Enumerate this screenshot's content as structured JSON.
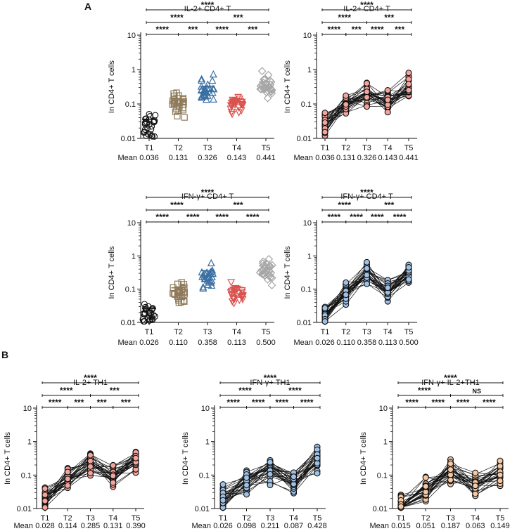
{
  "panel_labels": {
    "a": "A",
    "b": "B"
  },
  "common": {
    "ylabel": "In CD4+ T cells",
    "mean_label": "Mean",
    "categories": [
      "T1",
      "T2",
      "T3",
      "T4",
      "T5"
    ],
    "yticks": [
      "0.01",
      "0.1",
      "1",
      "10"
    ],
    "sig": {
      "s4": "****",
      "s3": "***",
      "ns": "NS"
    }
  },
  "colors": {
    "T1": "#111111",
    "T2": "#8e7a5a",
    "T3": "#3a6fa3",
    "T4": "#d9534f",
    "T5": "#a6a6a6",
    "salmon": "#f4a49c",
    "lightblue": "#9fc1e6",
    "peach": "#f6c9a4"
  },
  "chart_data": [
    {
      "id": "a1",
      "type": "scatter",
      "title": "IL-2+ CD4+ T",
      "ylabel": "In CD4+ T cells",
      "scale": "log",
      "ylim": [
        0.01,
        10
      ],
      "categories": [
        "T1",
        "T2",
        "T3",
        "T4",
        "T5"
      ],
      "means": [
        "0.036",
        "0.131",
        "0.326",
        "0.143",
        "0.441"
      ],
      "mean_values": [
        0.036,
        0.131,
        0.326,
        0.143,
        0.441
      ],
      "style": "dot",
      "markers": [
        "circle",
        "square",
        "triangle",
        "invtriangle",
        "diamond"
      ],
      "brackets": [
        {
          "from": "T1",
          "to": "T5",
          "label": "****"
        },
        {
          "from": "T1",
          "to": "T3",
          "label": "****"
        },
        {
          "from": "T3",
          "to": "T5",
          "label": "***"
        },
        {
          "from": "T1",
          "to": "T2",
          "label": "****"
        },
        {
          "from": "T2",
          "to": "T3",
          "label": "***"
        },
        {
          "from": "T3",
          "to": "T4",
          "label": "****"
        },
        {
          "from": "T4",
          "to": "T5",
          "label": "***"
        }
      ]
    },
    {
      "id": "a2",
      "type": "line",
      "title": "IL-2+ CD4+ T",
      "ylabel": "In CD4+ T cells",
      "scale": "log",
      "ylim": [
        0.01,
        10
      ],
      "categories": [
        "T1",
        "T2",
        "T3",
        "T4",
        "T5"
      ],
      "means": [
        "0.036",
        "0.131",
        "0.326",
        "0.143",
        "0.441"
      ],
      "mean_values": [
        0.036,
        0.131,
        0.326,
        0.143,
        0.441
      ],
      "style": "paired",
      "color": "#f4a49c",
      "brackets": [
        {
          "from": "T1",
          "to": "T5",
          "label": "****"
        },
        {
          "from": "T1",
          "to": "T3",
          "label": "****"
        },
        {
          "from": "T3",
          "to": "T5",
          "label": "***"
        },
        {
          "from": "T1",
          "to": "T2",
          "label": "****"
        },
        {
          "from": "T2",
          "to": "T3",
          "label": "***"
        },
        {
          "from": "T3",
          "to": "T4",
          "label": "****"
        },
        {
          "from": "T4",
          "to": "T5",
          "label": "***"
        }
      ]
    },
    {
      "id": "a3",
      "type": "scatter",
      "title": "IFN-γ+ CD4+ T",
      "ylabel": "In CD4+ T cells",
      "scale": "log",
      "ylim": [
        0.01,
        10
      ],
      "categories": [
        "T1",
        "T2",
        "T3",
        "T4",
        "T5"
      ],
      "means": [
        "0.026",
        "0.110",
        "0.358",
        "0.113",
        "0.500"
      ],
      "mean_values": [
        0.026,
        0.11,
        0.358,
        0.113,
        0.5
      ],
      "style": "dot",
      "markers": [
        "circle",
        "square",
        "triangle",
        "invtriangle",
        "diamond"
      ],
      "brackets": [
        {
          "from": "T1",
          "to": "T5",
          "label": "****"
        },
        {
          "from": "T1",
          "to": "T3",
          "label": "****"
        },
        {
          "from": "T3",
          "to": "T5",
          "label": "***"
        },
        {
          "from": "T1",
          "to": "T2",
          "label": "****"
        },
        {
          "from": "T2",
          "to": "T3",
          "label": "****"
        },
        {
          "from": "T3",
          "to": "T4",
          "label": "****"
        },
        {
          "from": "T4",
          "to": "T5",
          "label": "****"
        }
      ]
    },
    {
      "id": "a4",
      "type": "line",
      "title": "IFN-γ+ CD4+ T",
      "ylabel": "In CD4+ T cells",
      "scale": "log",
      "ylim": [
        0.01,
        10
      ],
      "categories": [
        "T1",
        "T2",
        "T3",
        "T4",
        "T5"
      ],
      "means": [
        "0.026",
        "0.110",
        "0.358",
        "0.113",
        "0.500"
      ],
      "mean_values": [
        0.026,
        0.11,
        0.358,
        0.113,
        0.5
      ],
      "style": "paired",
      "color": "#9fc1e6",
      "brackets": [
        {
          "from": "T1",
          "to": "T5",
          "label": "****"
        },
        {
          "from": "T1",
          "to": "T3",
          "label": "****"
        },
        {
          "from": "T3",
          "to": "T5",
          "label": "***"
        },
        {
          "from": "T1",
          "to": "T2",
          "label": "****"
        },
        {
          "from": "T2",
          "to": "T3",
          "label": "****"
        },
        {
          "from": "T3",
          "to": "T4",
          "label": "****"
        },
        {
          "from": "T4",
          "to": "T5",
          "label": "****"
        }
      ]
    },
    {
      "id": "b1",
      "type": "line",
      "title": "IL-2+ TH1",
      "ylabel": "In CD4+ T cells",
      "scale": "log",
      "ylim": [
        0.01,
        10
      ],
      "categories": [
        "T1",
        "T2",
        "T3",
        "T4",
        "T5"
      ],
      "means": [
        "0.028",
        "0.114",
        "0.285",
        "0.131",
        "0.390"
      ],
      "mean_values": [
        0.028,
        0.114,
        0.285,
        0.131,
        0.39
      ],
      "style": "paired",
      "color": "#f4a49c",
      "brackets": [
        {
          "from": "T1",
          "to": "T5",
          "label": "****"
        },
        {
          "from": "T1",
          "to": "T3",
          "label": "****"
        },
        {
          "from": "T3",
          "to": "T5",
          "label": "***"
        },
        {
          "from": "T1",
          "to": "T2",
          "label": "****"
        },
        {
          "from": "T2",
          "to": "T3",
          "label": "***"
        },
        {
          "from": "T3",
          "to": "T4",
          "label": "***"
        },
        {
          "from": "T4",
          "to": "T5",
          "label": "***"
        }
      ]
    },
    {
      "id": "b2",
      "type": "line",
      "title": "IFN-γ+ TH1",
      "ylabel": "In CD4+ T cells",
      "scale": "log",
      "ylim": [
        0.01,
        10
      ],
      "categories": [
        "T1",
        "T2",
        "T3",
        "T4",
        "T5"
      ],
      "means": [
        "0.026",
        "0.098",
        "0.211",
        "0.087",
        "0.428"
      ],
      "mean_values": [
        0.026,
        0.098,
        0.211,
        0.087,
        0.428
      ],
      "style": "paired",
      "color": "#9fc1e6",
      "brackets": [
        {
          "from": "T1",
          "to": "T5",
          "label": "****"
        },
        {
          "from": "T1",
          "to": "T3",
          "label": "****"
        },
        {
          "from": "T3",
          "to": "T5",
          "label": "****"
        },
        {
          "from": "T1",
          "to": "T2",
          "label": "****"
        },
        {
          "from": "T2",
          "to": "T3",
          "label": "****"
        },
        {
          "from": "T3",
          "to": "T4",
          "label": "****"
        },
        {
          "from": "T4",
          "to": "T5",
          "label": "****"
        }
      ]
    },
    {
      "id": "b3",
      "type": "line",
      "title": "IFN-γ+ IL-2+TH1",
      "ylabel": "In CD4+ T cells",
      "scale": "log",
      "ylim": [
        0.01,
        10
      ],
      "categories": [
        "T1",
        "T2",
        "T3",
        "T4",
        "T5"
      ],
      "means": [
        "0.015",
        "0.051",
        "0.187",
        "0.063",
        "0.149"
      ],
      "mean_values": [
        0.015,
        0.051,
        0.187,
        0.063,
        0.149
      ],
      "style": "paired",
      "color": "#f6c9a4",
      "brackets": [
        {
          "from": "T1",
          "to": "T5",
          "label": "****"
        },
        {
          "from": "T1",
          "to": "T3",
          "label": "****"
        },
        {
          "from": "T3",
          "to": "T5",
          "label": "NS"
        },
        {
          "from": "T1",
          "to": "T2",
          "label": "****"
        },
        {
          "from": "T2",
          "to": "T3",
          "label": "****"
        },
        {
          "from": "T3",
          "to": "T4",
          "label": "****"
        },
        {
          "from": "T4",
          "to": "T5",
          "label": "****"
        }
      ]
    }
  ]
}
